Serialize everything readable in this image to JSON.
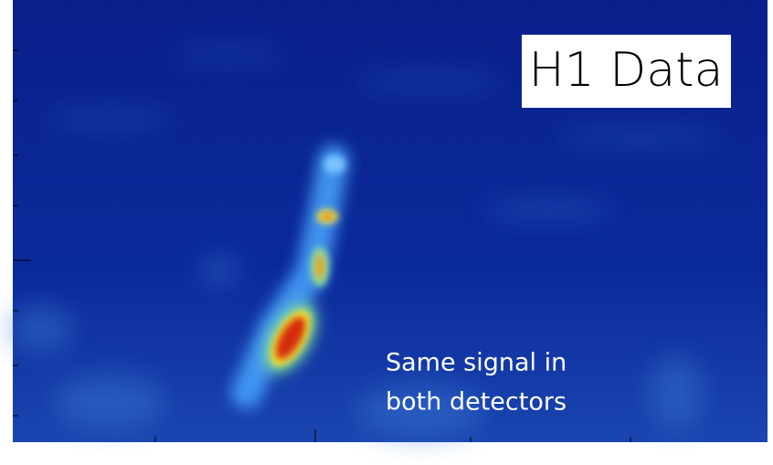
{
  "label": "H1 Data",
  "caption": [
    "Same signal in",
    "both detectors"
  ]
}
